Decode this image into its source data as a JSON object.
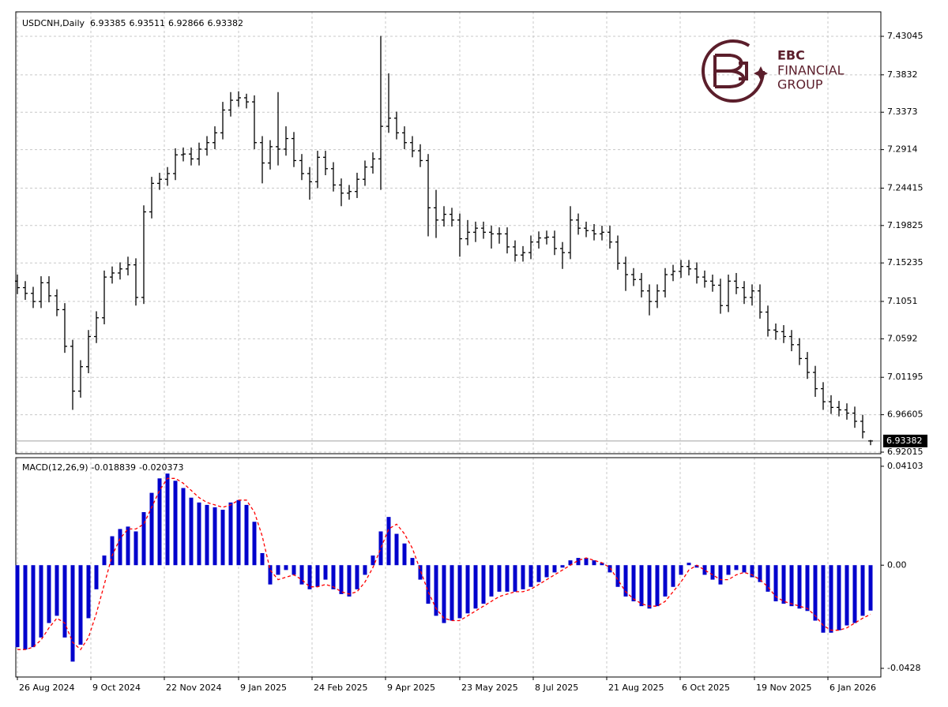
{
  "chart_data": [
    {
      "type": "ohlc",
      "title": "USDCNH,Daily",
      "color": "#000000",
      "grid": true,
      "ylim": [
        6.9182,
        7.4605
      ],
      "yticks": [
        6.92015,
        6.96605,
        7.01195,
        7.0592,
        7.1051,
        7.15235,
        7.19825,
        7.24415,
        7.2914,
        7.3373,
        7.3832,
        7.43045
      ],
      "xlim": [
        -0.2,
        109.3
      ],
      "xticks": [
        {
          "value": 0,
          "label": "26 Aug 2024"
        },
        {
          "value": 9.3,
          "label": "9 Oct 2024"
        },
        {
          "value": 18.6,
          "label": "22 Nov 2024"
        },
        {
          "value": 28,
          "label": "9 Jan 2025"
        },
        {
          "value": 37.3,
          "label": "24 Feb 2025"
        },
        {
          "value": 46.6,
          "label": "9 Apr 2025"
        },
        {
          "value": 56,
          "label": "23 May 2025"
        },
        {
          "value": 65.3,
          "label": "8 Jul 2025"
        },
        {
          "value": 74.6,
          "label": "21 Aug 2025"
        },
        {
          "value": 83.9,
          "label": "6 Oct 2025"
        },
        {
          "value": 93.3,
          "label": "19 Nov 2025"
        },
        {
          "value": 102.6,
          "label": "6 Jan 2026"
        }
      ],
      "open": [
        7.13,
        7.122,
        7.115,
        7.105,
        7.128,
        7.112,
        7.095,
        7.05,
        6.995,
        7.025,
        7.062,
        7.085,
        7.135,
        7.14,
        7.145,
        7.15,
        7.11,
        7.215,
        7.25,
        7.255,
        7.262,
        7.285,
        7.286,
        7.28,
        7.292,
        7.3,
        7.312,
        7.34,
        7.352,
        7.355,
        7.35,
        7.3,
        7.275,
        7.295,
        7.292,
        7.305,
        7.278,
        7.262,
        7.252,
        7.282,
        7.268,
        7.248,
        7.238,
        7.24,
        7.255,
        7.27,
        7.28,
        7.32,
        7.33,
        7.312,
        7.3,
        7.29,
        7.278,
        7.22,
        7.205,
        7.212,
        7.205,
        7.182,
        7.19,
        7.195,
        7.19,
        7.188,
        7.188,
        7.172,
        7.162,
        7.165,
        7.178,
        7.183,
        7.184,
        7.17,
        7.165,
        7.205,
        7.195,
        7.192,
        7.188,
        7.19,
        7.178,
        7.152,
        7.138,
        7.132,
        7.118,
        7.105,
        7.118,
        7.138,
        7.142,
        7.148,
        7.145,
        7.135,
        7.13,
        7.125,
        7.1,
        7.13,
        7.122,
        7.11,
        7.118,
        7.092,
        7.07,
        7.068,
        7.062,
        7.052,
        7.035,
        7.018,
        6.998,
        6.982,
        6.975,
        6.972,
        6.968,
        6.958,
        6.93385
      ],
      "high": [
        7.138,
        7.13,
        7.123,
        7.136,
        7.136,
        7.12,
        7.103,
        7.058,
        7.033,
        7.07,
        7.093,
        7.143,
        7.148,
        7.153,
        7.16,
        7.158,
        7.223,
        7.258,
        7.263,
        7.27,
        7.293,
        7.294,
        7.294,
        7.3,
        7.308,
        7.32,
        7.35,
        7.362,
        7.363,
        7.36,
        7.358,
        7.308,
        7.303,
        7.362,
        7.32,
        7.313,
        7.286,
        7.27,
        7.29,
        7.29,
        7.276,
        7.256,
        7.248,
        7.263,
        7.278,
        7.288,
        7.431,
        7.385,
        7.338,
        7.32,
        7.308,
        7.298,
        7.286,
        7.242,
        7.222,
        7.22,
        7.213,
        7.205,
        7.203,
        7.203,
        7.198,
        7.196,
        7.196,
        7.18,
        7.173,
        7.186,
        7.191,
        7.192,
        7.192,
        7.178,
        7.222,
        7.213,
        7.203,
        7.2,
        7.198,
        7.198,
        7.186,
        7.16,
        7.146,
        7.14,
        7.126,
        7.126,
        7.146,
        7.15,
        7.156,
        7.156,
        7.153,
        7.143,
        7.138,
        7.133,
        7.138,
        7.14,
        7.13,
        7.126,
        7.126,
        7.1,
        7.078,
        7.076,
        7.07,
        7.06,
        7.043,
        7.026,
        7.006,
        6.99,
        6.983,
        6.98,
        6.976,
        6.966,
        6.93511
      ],
      "low": [
        7.114,
        7.107,
        7.097,
        7.097,
        7.104,
        7.087,
        7.042,
        6.972,
        6.987,
        7.017,
        7.054,
        7.077,
        7.127,
        7.132,
        7.137,
        7.1,
        7.102,
        7.207,
        7.242,
        7.247,
        7.254,
        7.277,
        7.272,
        7.272,
        7.284,
        7.292,
        7.304,
        7.332,
        7.344,
        7.342,
        7.292,
        7.25,
        7.267,
        7.272,
        7.284,
        7.27,
        7.254,
        7.23,
        7.244,
        7.26,
        7.24,
        7.222,
        7.23,
        7.232,
        7.247,
        7.262,
        7.242,
        7.312,
        7.304,
        7.292,
        7.282,
        7.27,
        7.185,
        7.183,
        7.197,
        7.197,
        7.16,
        7.174,
        7.178,
        7.182,
        7.17,
        7.176,
        7.164,
        7.154,
        7.154,
        7.157,
        7.17,
        7.175,
        7.162,
        7.145,
        7.157,
        7.187,
        7.184,
        7.18,
        7.18,
        7.17,
        7.144,
        7.118,
        7.124,
        7.11,
        7.088,
        7.097,
        7.11,
        7.13,
        7.134,
        7.137,
        7.127,
        7.122,
        7.117,
        7.09,
        7.092,
        7.114,
        7.102,
        7.1,
        7.084,
        7.062,
        7.058,
        7.054,
        7.044,
        7.027,
        7.01,
        6.988,
        6.972,
        6.967,
        6.964,
        6.96,
        6.95,
        6.937,
        6.92866
      ],
      "close": [
        7.122,
        7.115,
        7.105,
        7.128,
        7.112,
        7.095,
        7.05,
        6.995,
        7.025,
        7.062,
        7.085,
        7.135,
        7.14,
        7.145,
        7.15,
        7.11,
        7.215,
        7.25,
        7.255,
        7.262,
        7.285,
        7.286,
        7.28,
        7.292,
        7.3,
        7.312,
        7.34,
        7.352,
        7.355,
        7.35,
        7.3,
        7.275,
        7.295,
        7.292,
        7.305,
        7.278,
        7.262,
        7.252,
        7.282,
        7.268,
        7.248,
        7.238,
        7.24,
        7.255,
        7.27,
        7.28,
        7.32,
        7.33,
        7.312,
        7.3,
        7.29,
        7.278,
        7.22,
        7.205,
        7.212,
        7.205,
        7.182,
        7.19,
        7.195,
        7.19,
        7.188,
        7.188,
        7.172,
        7.162,
        7.165,
        7.178,
        7.183,
        7.184,
        7.17,
        7.165,
        7.205,
        7.195,
        7.192,
        7.188,
        7.19,
        7.178,
        7.152,
        7.138,
        7.132,
        7.118,
        7.105,
        7.118,
        7.138,
        7.142,
        7.148,
        7.145,
        7.135,
        7.13,
        7.125,
        7.1,
        7.13,
        7.122,
        7.11,
        7.118,
        7.092,
        7.07,
        7.068,
        7.062,
        7.052,
        7.035,
        7.018,
        6.998,
        6.982,
        6.975,
        6.972,
        6.968,
        6.958,
        6.945,
        6.93382
      ]
    },
    {
      "type": "macd",
      "title": "MACD(12,26,9)",
      "color": "#0000cc",
      "signal_color": "#ff0000",
      "grid": true,
      "ylim": [
        -0.0464,
        0.0446
      ],
      "yticks": [
        -0.0428,
        {
          "value": 0,
          "label": "0.00"
        },
        0.04103
      ],
      "values": [
        -0.034,
        -0.035,
        -0.034,
        -0.03,
        -0.024,
        -0.021,
        -0.03,
        -0.04,
        -0.033,
        -0.022,
        -0.01,
        0.004,
        0.012,
        0.015,
        0.016,
        0.014,
        0.022,
        0.03,
        0.036,
        0.038,
        0.035,
        0.032,
        0.028,
        0.026,
        0.025,
        0.024,
        0.023,
        0.026,
        0.027,
        0.025,
        0.018,
        0.005,
        -0.008,
        -0.004,
        -0.002,
        -0.004,
        -0.008,
        -0.01,
        -0.009,
        -0.006,
        -0.01,
        -0.012,
        -0.013,
        -0.01,
        -0.004,
        0.004,
        0.014,
        0.02,
        0.013,
        0.009,
        0.003,
        -0.006,
        -0.016,
        -0.021,
        -0.024,
        -0.023,
        -0.022,
        -0.02,
        -0.018,
        -0.016,
        -0.013,
        -0.011,
        -0.011,
        -0.011,
        -0.01,
        -0.009,
        -0.007,
        -0.005,
        -0.003,
        -0.001,
        0.002,
        0.003,
        0.003,
        0.002,
        0.001,
        -0.003,
        -0.009,
        -0.013,
        -0.015,
        -0.017,
        -0.018,
        -0.017,
        -0.013,
        -0.009,
        -0.004,
        0.001,
        -0.001,
        -0.004,
        -0.006,
        -0.008,
        -0.004,
        -0.002,
        -0.003,
        -0.005,
        -0.007,
        -0.011,
        -0.015,
        -0.016,
        -0.017,
        -0.018,
        -0.019,
        -0.023,
        -0.028,
        -0.028,
        -0.027,
        -0.025,
        -0.024,
        -0.021,
        -0.018839
      ],
      "signal": [
        -0.035,
        -0.035,
        -0.034,
        -0.031,
        -0.026,
        -0.022,
        -0.024,
        -0.032,
        -0.035,
        -0.03,
        -0.02,
        -0.008,
        0.004,
        0.011,
        0.015,
        0.015,
        0.017,
        0.024,
        0.031,
        0.036,
        0.036,
        0.034,
        0.031,
        0.028,
        0.026,
        0.025,
        0.024,
        0.025,
        0.027,
        0.027,
        0.022,
        0.012,
        -0.002,
        -0.006,
        -0.005,
        -0.004,
        -0.006,
        -0.009,
        -0.009,
        -0.008,
        -0.009,
        -0.011,
        -0.012,
        -0.011,
        -0.007,
        -0.001,
        0.007,
        0.015,
        0.017,
        0.013,
        0.007,
        -0.002,
        -0.011,
        -0.018,
        -0.022,
        -0.023,
        -0.023,
        -0.021,
        -0.019,
        -0.017,
        -0.015,
        -0.013,
        -0.012,
        -0.011,
        -0.011,
        -0.01,
        -0.008,
        -0.006,
        -0.004,
        -0.002,
        0.0,
        0.002,
        0.003,
        0.002,
        0.001,
        -0.001,
        -0.006,
        -0.011,
        -0.014,
        -0.016,
        -0.017,
        -0.017,
        -0.015,
        -0.011,
        -0.007,
        -0.002,
        0.0,
        -0.002,
        -0.004,
        -0.006,
        -0.006,
        -0.004,
        -0.003,
        -0.004,
        -0.006,
        -0.009,
        -0.013,
        -0.015,
        -0.016,
        -0.017,
        -0.018,
        -0.021,
        -0.025,
        -0.027,
        -0.027,
        -0.026,
        -0.024,
        -0.022,
        -0.020373
      ]
    }
  ],
  "logo": {
    "brand": "EBC",
    "line1": "FINANCIAL",
    "line2": "GROUP"
  }
}
